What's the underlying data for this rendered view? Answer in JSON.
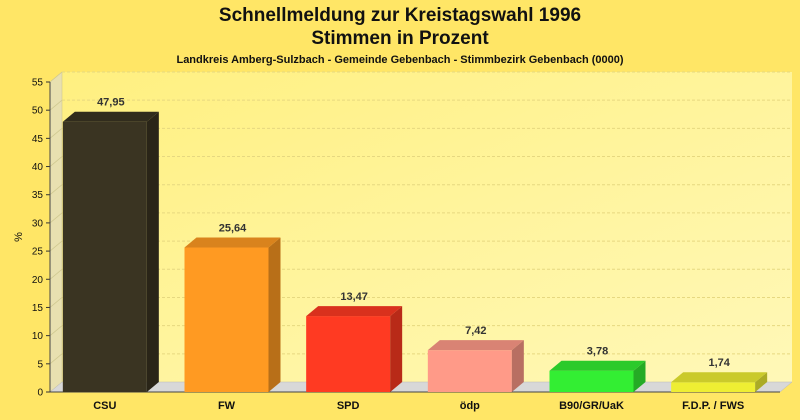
{
  "chart_data": {
    "type": "bar",
    "title": "Schnellmeldung zur Kreistagswahl 1996",
    "subtitle_line2": "Stimmen in Prozent",
    "subtitle": "Landkreis Amberg-Sulzbach - Gemeinde Gebenbach - Stimmbezirk Gebenbach (0000)",
    "ylabel": "%",
    "xlabel": "",
    "ylim": [
      0,
      55
    ],
    "yticks": [
      0,
      5,
      10,
      15,
      20,
      25,
      30,
      35,
      40,
      45,
      50,
      55
    ],
    "grid": true,
    "categories": [
      "CSU",
      "FW",
      "SPD",
      "ödp",
      "B90/GR/UaK",
      "F.D.P. / FWS"
    ],
    "values": [
      47.95,
      25.64,
      13.47,
      7.42,
      3.78,
      1.74
    ],
    "value_labels": [
      "47,95",
      "25,64",
      "13,47",
      "7,42",
      "3,78",
      "1,74"
    ],
    "colors": [
      "#3a3422",
      "#ff9a22",
      "#ff3a22",
      "#ff9a88",
      "#33ee33",
      "#eeee33"
    ]
  }
}
